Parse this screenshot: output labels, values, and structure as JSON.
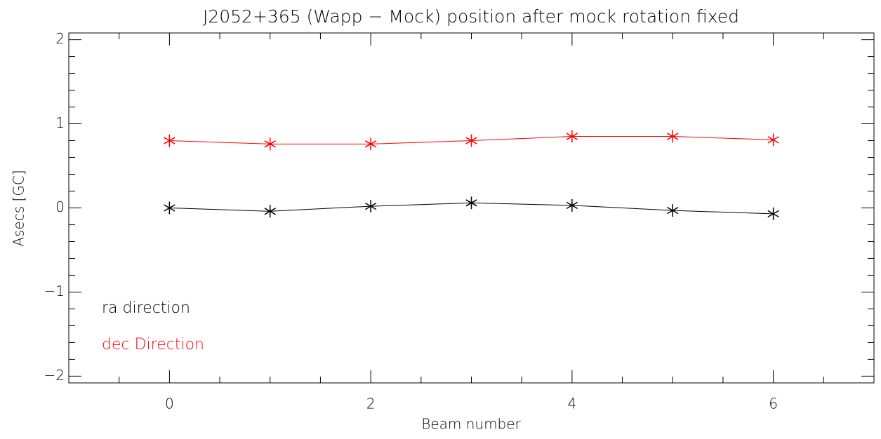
{
  "chart_data": {
    "type": "line",
    "title": "J2052+365 (Wapp − Mock) position after mock rotation fixed",
    "x_label": "Beam number",
    "y_label": "Asecs [GC]",
    "x": [
      0,
      1,
      2,
      3,
      4,
      5,
      6
    ],
    "series": [
      {
        "name": "ra direction",
        "color": "#000000",
        "values": [
          0,
          -0.04,
          0.02,
          0.06,
          0.03,
          -0.03,
          -0.07
        ]
      },
      {
        "name": "dec Direction",
        "color": "#ff0000",
        "values": [
          0.8,
          0.76,
          0.76,
          0.8,
          0.85,
          0.85,
          0.81
        ]
      }
    ],
    "xlim": [
      -1,
      7
    ],
    "ylim": [
      -2.08,
      2.08
    ],
    "xticks": [
      0,
      2,
      4,
      6
    ],
    "yticks": [
      {
        "value": -2,
        "label": "−2"
      },
      {
        "value": -1,
        "label": "−1"
      },
      0,
      1,
      2
    ],
    "xminor": 4,
    "yminor": 5,
    "marker": "asterisk",
    "legend": "lower left"
  }
}
